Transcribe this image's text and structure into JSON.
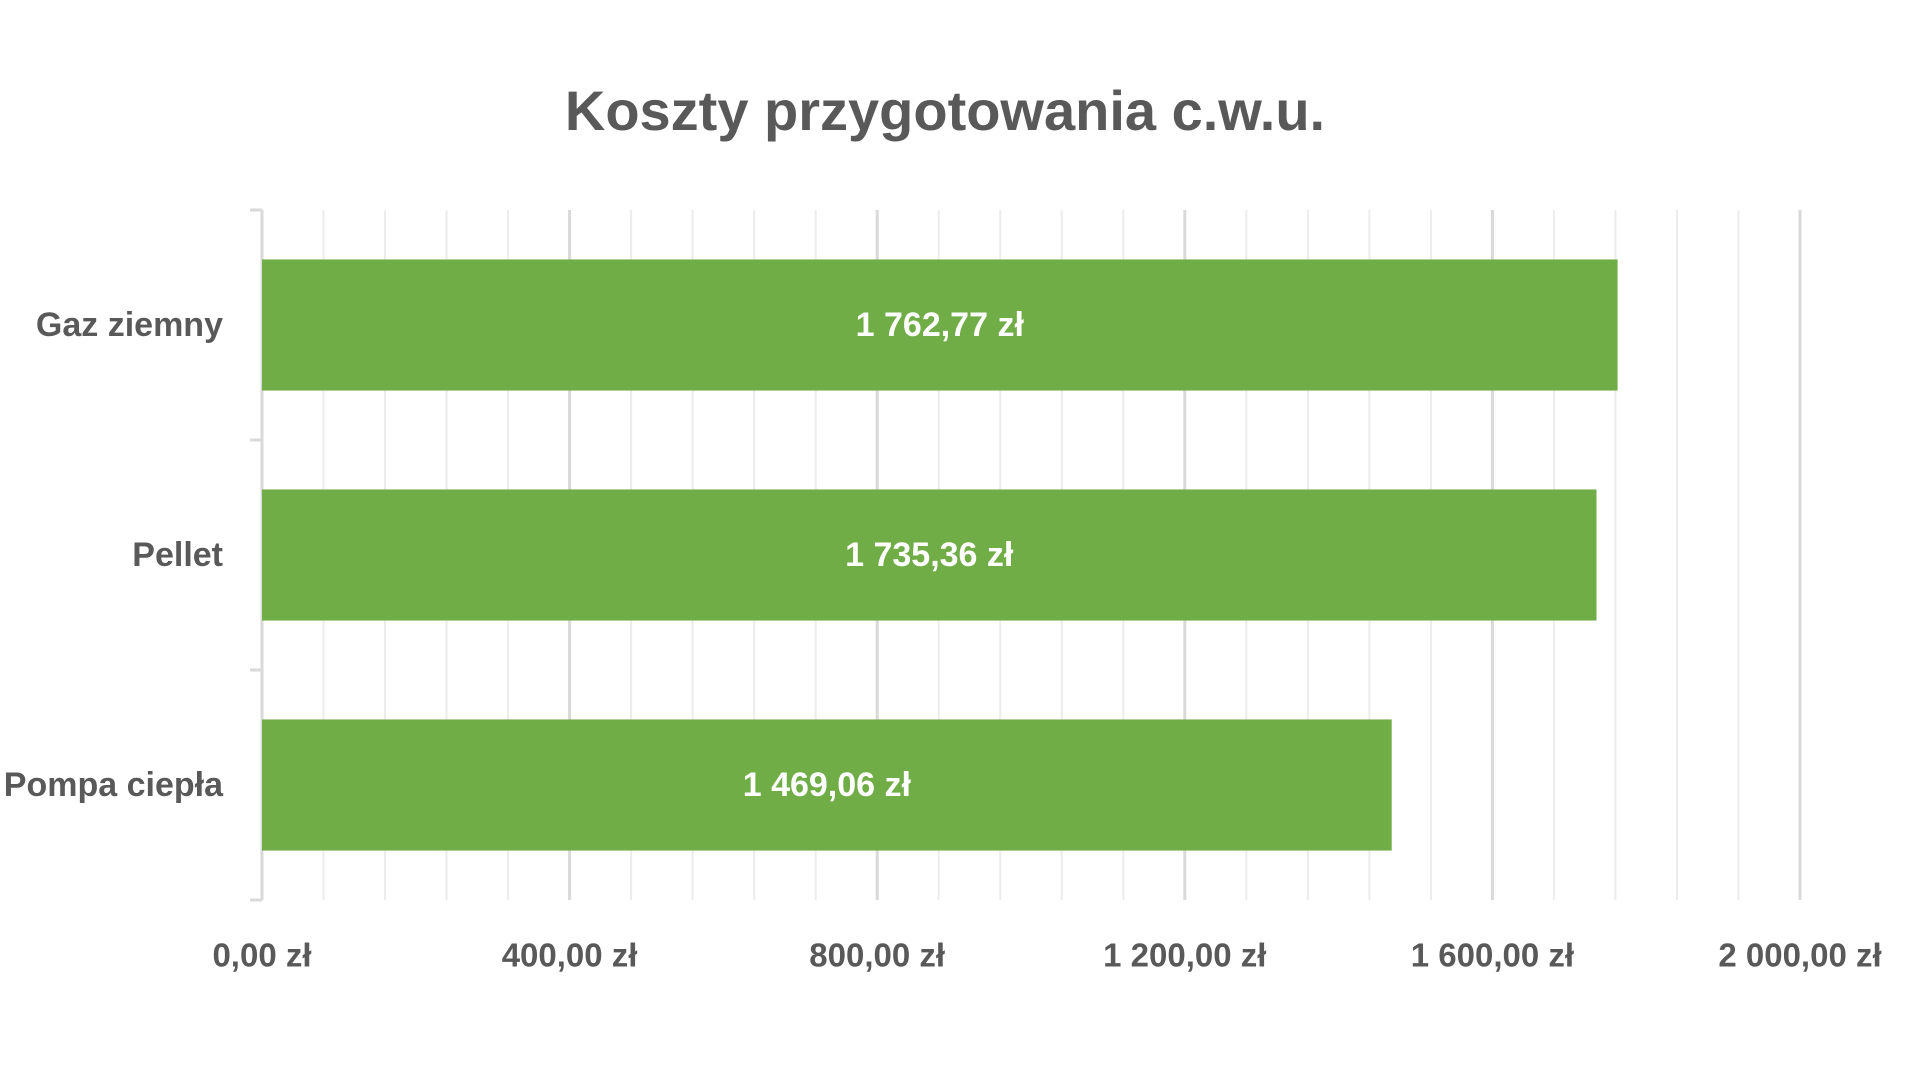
{
  "chart_data": {
    "type": "bar",
    "orientation": "horizontal",
    "title": "Koszty przygotowania c.w.u.",
    "categories": [
      "Gaz ziemny",
      "Pellet",
      "Pompa ciepła"
    ],
    "values": [
      1762.77,
      1735.36,
      1469.06
    ],
    "data_labels": [
      "1 762,77 zł",
      "1 735,36 zł",
      "1 469,06 zł"
    ],
    "xlim": [
      0,
      2000
    ],
    "x_ticks": [
      0,
      400,
      800,
      1200,
      1600,
      2000
    ],
    "x_tick_labels": [
      "0,00 zł",
      "400,00 zł",
      "800,00 zł",
      "1 200,00 zł",
      "1 600,00 zł",
      "2 000,00 zł"
    ],
    "grid": true,
    "bar_color": "#70ad47",
    "grid_color": "#d9d9d9",
    "text_color": "#595959"
  }
}
